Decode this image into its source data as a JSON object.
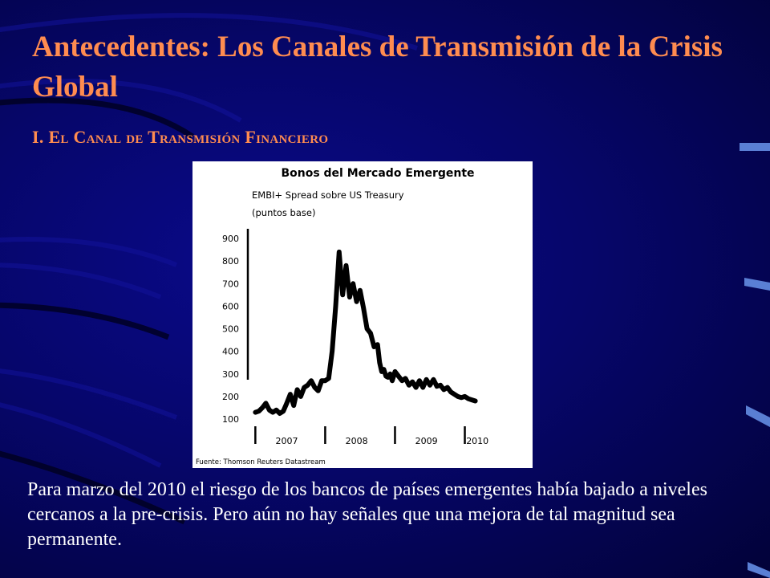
{
  "slide": {
    "title": "Antecedentes: Los Canales de Transmisión de la Crisis Global",
    "subtitle": "I. El Canal de Transmisión Financiero",
    "caption": "Para marzo del 2010 el riesgo de los bancos de países emergentes había bajado a niveles cercanos a la pre-crisis. Pero aún no hay señales que una mejora de tal magnitud sea permanente."
  },
  "colors": {
    "background": "#06066a",
    "title": "#ff8c50",
    "text": "#ffffff",
    "line": "#000000"
  },
  "chart_data": {
    "type": "line",
    "title": "Bonos del Mercado Emergente",
    "subtitle_lines": [
      "EMBI+ Spread sobre US Treasury",
      "(puntos base)"
    ],
    "source": "Fuente: Thomson Reuters Datastream",
    "xlabel": "",
    "ylabel": "",
    "ylim": [
      100,
      900
    ],
    "yticks": [
      900,
      800,
      700,
      600,
      500,
      400,
      300,
      200,
      100
    ],
    "xlim": [
      2006.95,
      2010.35
    ],
    "xticks": [
      "2007",
      "2008",
      "2009",
      "2010"
    ],
    "grid": false,
    "series": [
      {
        "x": [
          2007.0,
          2007.05,
          2007.1,
          2007.15,
          2007.2,
          2007.25,
          2007.3,
          2007.35,
          2007.4,
          2007.45,
          2007.5,
          2007.55,
          2007.6,
          2007.65,
          2007.7,
          2007.75,
          2007.8,
          2007.85,
          2007.9,
          2007.95,
          2008.0,
          2008.05,
          2008.1,
          2008.15,
          2008.2,
          2008.25,
          2008.3,
          2008.35,
          2008.4,
          2008.45,
          2008.5,
          2008.55,
          2008.6,
          2008.65,
          2008.7,
          2008.75,
          2008.78,
          2008.81,
          2008.84,
          2008.87,
          2008.9,
          2008.93,
          2008.96,
          2009.0,
          2009.05,
          2009.1,
          2009.15,
          2009.2,
          2009.25,
          2009.3,
          2009.35,
          2009.4,
          2009.45,
          2009.5,
          2009.55,
          2009.6,
          2009.65,
          2009.7,
          2009.75,
          2009.8,
          2009.85,
          2009.9,
          2009.95,
          2010.0,
          2010.05,
          2010.1,
          2010.15
        ],
        "y": [
          130,
          135,
          150,
          170,
          140,
          130,
          140,
          125,
          135,
          170,
          210,
          160,
          230,
          200,
          240,
          250,
          270,
          240,
          225,
          270,
          270,
          280,
          400,
          600,
          840,
          650,
          780,
          640,
          700,
          620,
          670,
          590,
          500,
          480,
          420,
          430,
          350,
          310,
          320,
          290,
          285,
          300,
          270,
          310,
          290,
          270,
          280,
          250,
          265,
          240,
          270,
          240,
          275,
          250,
          275,
          245,
          250,
          230,
          240,
          220,
          210,
          200,
          195,
          200,
          190,
          185,
          180
        ]
      }
    ]
  }
}
